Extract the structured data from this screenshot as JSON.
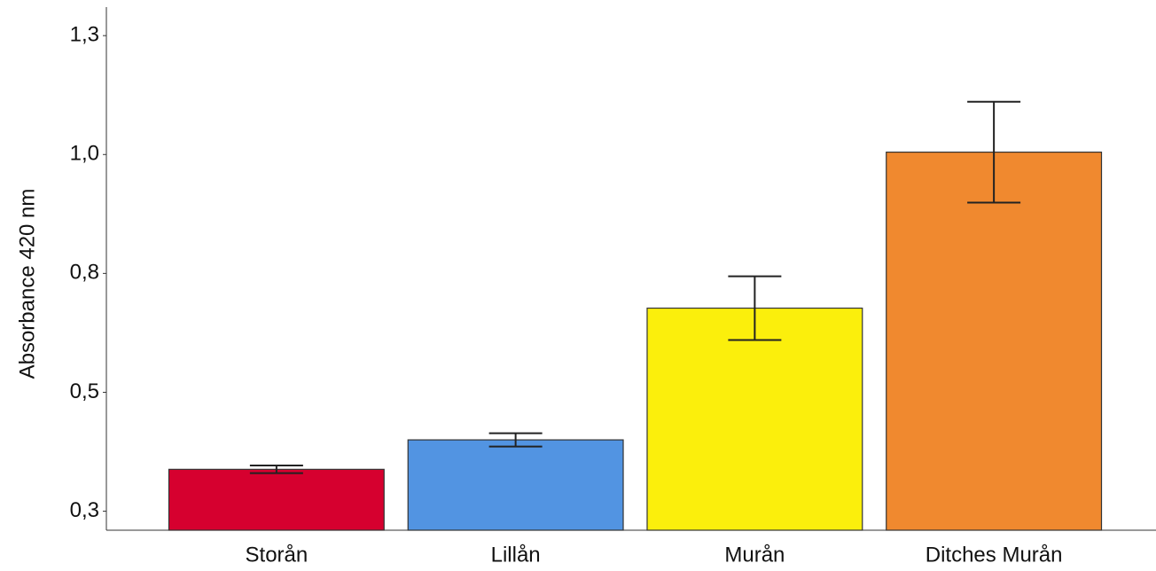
{
  "chart_data": {
    "type": "bar",
    "y_label": "Absorbance 420 nm",
    "categories": [
      "Storån",
      "Lillån",
      "Murån",
      "Ditches Murån"
    ],
    "values": [
      0.338,
      0.4,
      0.677,
      1.005
    ],
    "errors": [
      0.008,
      0.014,
      0.067,
      0.106
    ],
    "colors": [
      "#d6002f",
      "#5294e2",
      "#fbef0c",
      "#f0892f"
    ],
    "ylim": [
      0.21,
      1.31
    ],
    "yticks": [
      {
        "value": 0.25,
        "label": "0,3"
      },
      {
        "value": 0.5,
        "label": "0,5"
      },
      {
        "value": 0.75,
        "label": "0,8"
      },
      {
        "value": 1.0,
        "label": "1,0"
      },
      {
        "value": 1.25,
        "label": "1,3"
      }
    ],
    "grid": false
  }
}
